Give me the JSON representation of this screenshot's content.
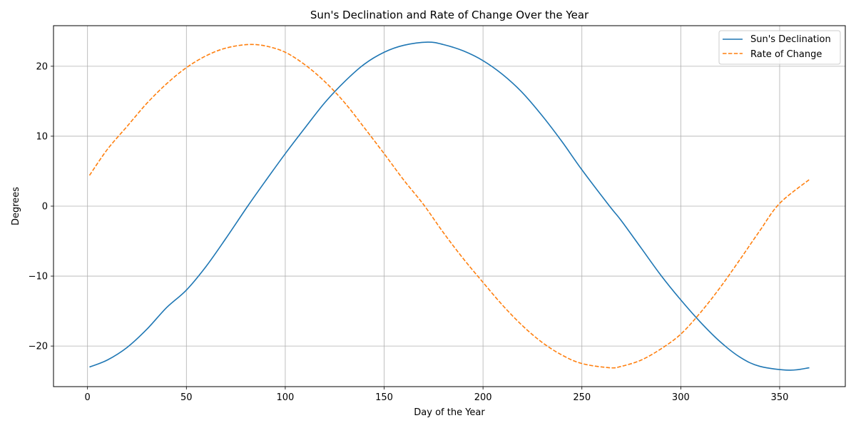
{
  "chart_data": {
    "type": "line",
    "title": "Sun's Declination and Rate of Change Over the Year",
    "xlabel": "Day of the Year",
    "ylabel": "Degrees",
    "xlim": [
      -17.2,
      383.2
    ],
    "ylim": [
      -25.8,
      25.8
    ],
    "xticks": [
      0,
      50,
      100,
      150,
      200,
      250,
      300,
      350
    ],
    "yticks": [
      -20,
      -10,
      0,
      10,
      20
    ],
    "grid": true,
    "legend_position": "top-right",
    "series": [
      {
        "name": "Sun's Declination",
        "color": "#1f77b4",
        "style": "solid",
        "x": [
          1,
          10,
          20,
          30,
          40,
          50,
          60,
          70,
          81,
          90,
          100,
          110,
          120,
          130,
          140,
          150,
          160,
          172,
          180,
          190,
          200,
          210,
          220,
          230,
          240,
          250,
          264,
          270,
          280,
          290,
          300,
          310,
          320,
          330,
          340,
          355,
          365
        ],
        "y": [
          -23.0,
          -22.0,
          -20.2,
          -17.6,
          -14.5,
          -12.0,
          -8.6,
          -4.6,
          0.0,
          3.6,
          7.5,
          11.2,
          14.8,
          17.8,
          20.3,
          22.0,
          23.0,
          23.45,
          23.1,
          22.2,
          20.8,
          18.8,
          16.2,
          12.9,
          9.2,
          5.2,
          0.0,
          -2.1,
          -6.0,
          -9.9,
          -13.4,
          -16.6,
          -19.4,
          -21.6,
          -22.9,
          -23.45,
          -23.1
        ]
      },
      {
        "name": "Rate of Change",
        "color": "#ff7f0e",
        "style": "dashed",
        "x": [
          1,
          10,
          20,
          30,
          40,
          50,
          60,
          70,
          81,
          90,
          100,
          110,
          120,
          130,
          140,
          150,
          160,
          170,
          180,
          190,
          200,
          210,
          220,
          230,
          240,
          250,
          264,
          270,
          280,
          290,
          300,
          310,
          320,
          330,
          340,
          350,
          365
        ],
        "y": [
          4.4,
          8.1,
          11.4,
          14.7,
          17.5,
          19.8,
          21.5,
          22.6,
          23.1,
          22.9,
          22.0,
          20.2,
          17.8,
          14.8,
          11.2,
          7.5,
          3.7,
          0.2,
          -3.8,
          -7.5,
          -10.9,
          -14.2,
          -17.1,
          -19.5,
          -21.3,
          -22.5,
          -23.1,
          -22.9,
          -22.0,
          -20.4,
          -18.3,
          -15.2,
          -11.6,
          -7.6,
          -3.5,
          0.4,
          3.8
        ]
      }
    ]
  }
}
